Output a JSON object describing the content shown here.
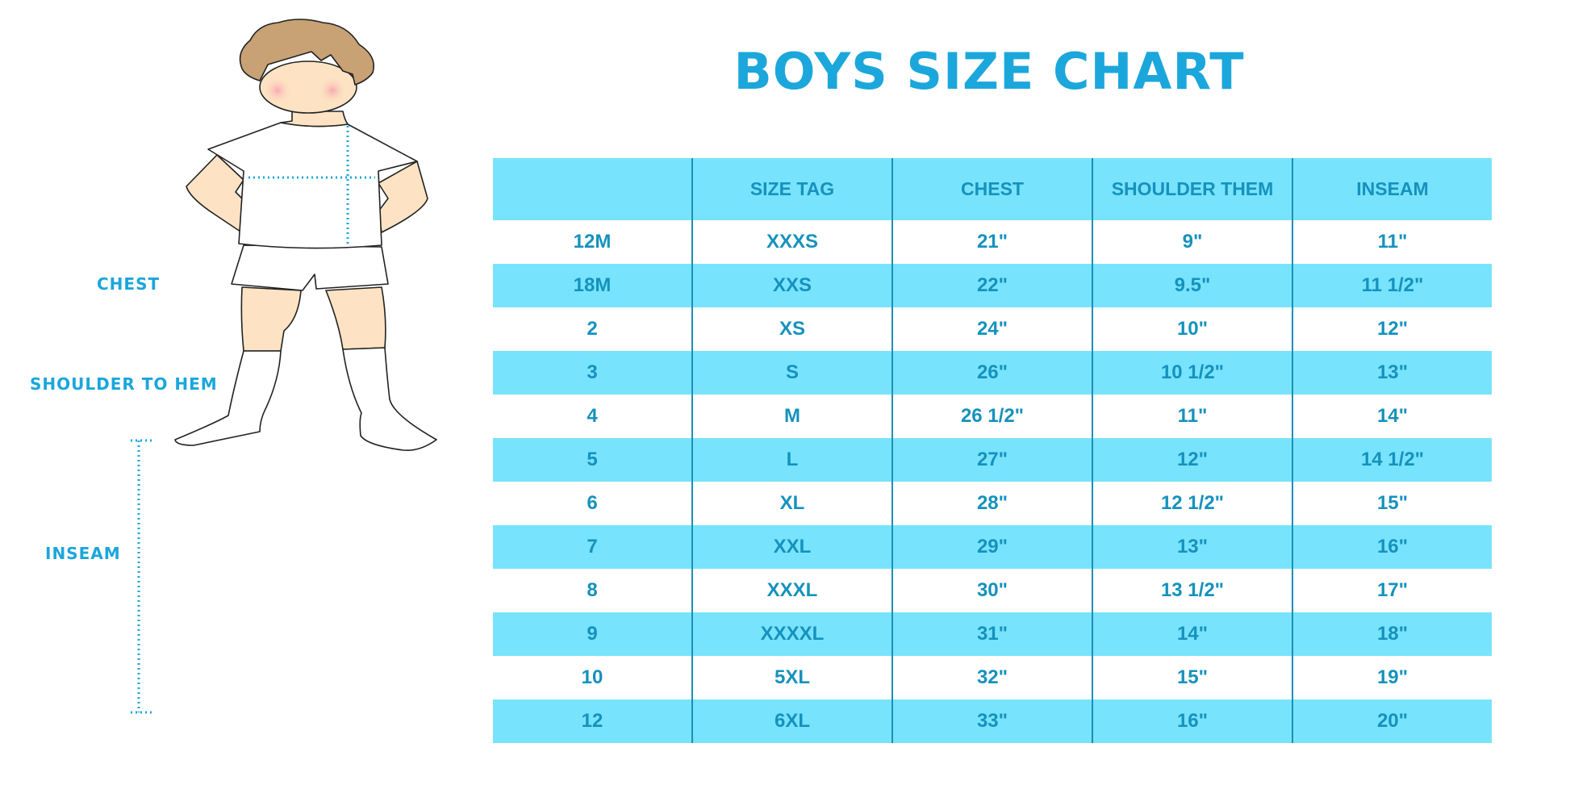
{
  "title": "BOYS SIZE CHART",
  "figure_labels": {
    "chest": "CHEST",
    "shoulder_to_hem": "SHOULDER TO HEM",
    "inseam": "INSEAM"
  },
  "colors": {
    "accent": "#1ba7dc",
    "header_bg": "#78e3fc",
    "table_text": "#1592bd"
  },
  "table": {
    "headers": [
      "",
      "SIZE TAG",
      "CHEST",
      "SHOULDER THEM",
      "INSEAM"
    ],
    "rows": [
      [
        "12M",
        "XXXS",
        "21\"",
        "9\"",
        "11\""
      ],
      [
        "18M",
        "XXS",
        "22\"",
        "9.5\"",
        "11 1/2\""
      ],
      [
        "2",
        "XS",
        "24\"",
        "10\"",
        "12\""
      ],
      [
        "3",
        "S",
        "26\"",
        "10 1/2\"",
        "13\""
      ],
      [
        "4",
        "M",
        "26 1/2\"",
        "11\"",
        "14\""
      ],
      [
        "5",
        "L",
        "27\"",
        "12\"",
        "14 1/2\""
      ],
      [
        "6",
        "XL",
        "28\"",
        "12 1/2\"",
        "15\""
      ],
      [
        "7",
        "XXL",
        "29\"",
        "13\"",
        "16\""
      ],
      [
        "8",
        "XXXL",
        "30\"",
        "13 1/2\"",
        "17\""
      ],
      [
        "9",
        "XXXXL",
        "31\"",
        "14\"",
        "18\""
      ],
      [
        "10",
        "5XL",
        "32\"",
        "15\"",
        "19\""
      ],
      [
        "12",
        "6XL",
        "33\"",
        "16\"",
        "20\""
      ]
    ]
  }
}
